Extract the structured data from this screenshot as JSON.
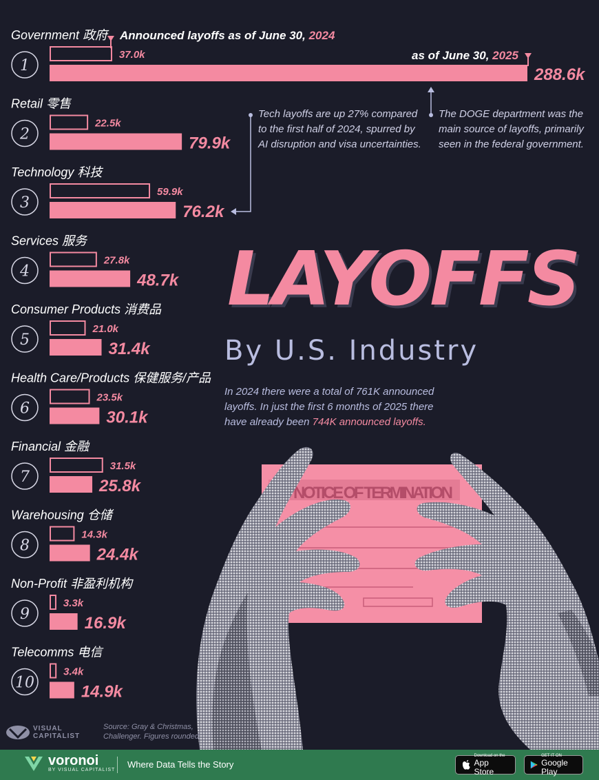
{
  "hero": {
    "title": "LAYOFFS",
    "subtitle": "By U.S. Industry",
    "intro_before": "In 2024 there were a total of 761K announced layoffs. In just the first 6 months of 2025 there have already been ",
    "intro_highlight": "744K announced layoffs.",
    "card_text": "NOTICE OF TERMINATION"
  },
  "legend": {
    "prefix_2024": "Announced layoffs as of June 30, ",
    "year_2024": "2024",
    "prefix_2025": "as of June 30, ",
    "year_2025": "2025"
  },
  "notes": {
    "tech": [
      "Tech layoffs are up 27% compared",
      "to the first half of 2024, spurred by",
      "AI disruption and visa uncertainties."
    ],
    "doge": [
      "The DOGE department was the",
      "main source of layoffs, primarily",
      "seen in the federal government."
    ]
  },
  "source": "Source: Gray & Christmas, Challenger. Figures rounded.",
  "brand": {
    "vc_line1": "VISUAL",
    "vc_line2": "CAPITALIST",
    "name": "voronoi",
    "by": "BY VISUAL CAPITALIST",
    "tagline": "Where Data Tells the Story",
    "appstore_small": "Download on the",
    "appstore_big": "App Store",
    "google_small": "GET IT ON",
    "google_big": "Google Play"
  },
  "colors": {
    "background": "#1b1c29",
    "accent": "#f48aa1",
    "footer": "#2f7a4f"
  },
  "chart_data": {
    "type": "bar",
    "orientation": "horizontal",
    "title": "LAYOFFS",
    "subtitle": "By U.S. Industry",
    "units": "k",
    "categories": [
      "Government 政府",
      "Retail 零售",
      "Technology 科技",
      "Services 服务",
      "Consumer Products 消费品",
      "Health Care/Products 保健服务/产品",
      "Financial 金融",
      "Warehousing 仓储",
      "Non-Profit 非盈利机构",
      "Telecomms 电信"
    ],
    "ranks": [
      "1",
      "2",
      "3",
      "4",
      "5",
      "6",
      "7",
      "8",
      "9",
      "10"
    ],
    "series": [
      {
        "name": "Announced layoffs as of June 30, 2024",
        "style": "outline",
        "values": [
          37.0,
          22.5,
          59.9,
          27.8,
          21.0,
          23.5,
          31.5,
          14.3,
          3.3,
          3.4
        ]
      },
      {
        "name": "as of June 30, 2025",
        "style": "filled",
        "values": [
          288.6,
          79.9,
          76.2,
          48.7,
          31.4,
          30.1,
          25.8,
          24.4,
          16.9,
          14.9
        ]
      }
    ],
    "labels_2024": [
      "37.0k",
      "22.5k",
      "59.9k",
      "27.8k",
      "21.0k",
      "23.5k",
      "31.5k",
      "14.3k",
      "3.3k",
      "3.4k"
    ],
    "labels_2025": [
      "288.6k",
      "79.9k",
      "76.2k",
      "48.7k",
      "31.4k",
      "30.1k",
      "25.8k",
      "24.4k",
      "16.9k",
      "14.9k"
    ],
    "grid": false
  }
}
